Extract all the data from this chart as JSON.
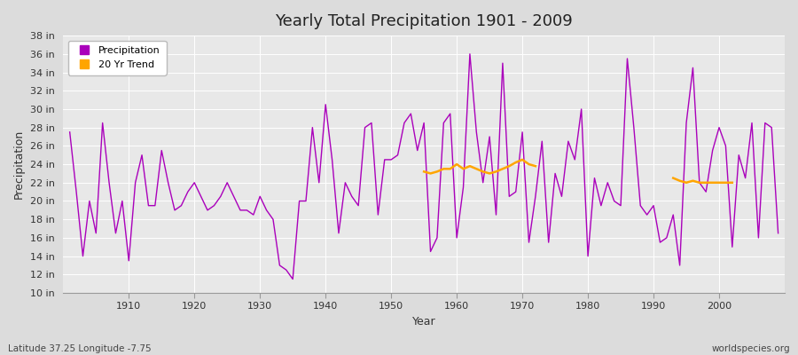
{
  "title": "Yearly Total Precipitation 1901 - 2009",
  "xlabel": "Year",
  "ylabel": "Precipitation",
  "subtitle_left": "Latitude 37.25 Longitude -7.75",
  "subtitle_right": "worldspecies.org",
  "precip_color": "#AA00BB",
  "trend_color": "#FFA500",
  "fig_bg_color": "#DCDCDC",
  "plot_bg_color": "#E8E8E8",
  "grid_color": "#FFFFFF",
  "ylim": [
    10,
    38
  ],
  "ytick_step": 2,
  "years": [
    1901,
    1902,
    1903,
    1904,
    1905,
    1906,
    1907,
    1908,
    1909,
    1910,
    1911,
    1912,
    1913,
    1914,
    1915,
    1916,
    1917,
    1918,
    1919,
    1920,
    1921,
    1922,
    1923,
    1924,
    1925,
    1926,
    1927,
    1928,
    1929,
    1930,
    1931,
    1932,
    1933,
    1934,
    1935,
    1936,
    1937,
    1938,
    1939,
    1940,
    1941,
    1942,
    1943,
    1944,
    1945,
    1946,
    1947,
    1948,
    1949,
    1950,
    1951,
    1952,
    1953,
    1954,
    1955,
    1956,
    1957,
    1958,
    1959,
    1960,
    1961,
    1962,
    1963,
    1964,
    1965,
    1966,
    1967,
    1968,
    1969,
    1970,
    1971,
    1972,
    1973,
    1974,
    1975,
    1976,
    1977,
    1978,
    1979,
    1980,
    1981,
    1982,
    1983,
    1984,
    1985,
    1986,
    1987,
    1988,
    1989,
    1990,
    1991,
    1992,
    1993,
    1994,
    1995,
    1996,
    1997,
    1998,
    1999,
    2000,
    2001,
    2002,
    2003,
    2004,
    2005,
    2006,
    2007,
    2008,
    2009
  ],
  "precip": [
    27.5,
    21.0,
    14.0,
    20.0,
    16.5,
    28.5,
    22.0,
    16.5,
    20.0,
    13.5,
    22.0,
    25.0,
    19.5,
    19.5,
    25.5,
    22.0,
    19.0,
    19.5,
    21.0,
    22.0,
    20.5,
    19.0,
    19.5,
    20.5,
    22.0,
    20.5,
    19.0,
    19.0,
    18.5,
    20.5,
    19.0,
    18.0,
    13.0,
    12.5,
    11.5,
    20.0,
    20.0,
    28.0,
    22.0,
    30.5,
    24.5,
    16.5,
    22.0,
    20.5,
    19.5,
    28.0,
    28.5,
    18.5,
    24.5,
    24.5,
    25.0,
    28.5,
    29.5,
    25.5,
    28.5,
    14.5,
    16.0,
    28.5,
    29.5,
    16.0,
    21.5,
    36.0,
    27.5,
    22.0,
    27.0,
    18.5,
    35.0,
    20.5,
    21.0,
    27.5,
    15.5,
    20.5,
    26.5,
    15.5,
    23.0,
    20.5,
    26.5,
    24.5,
    30.0,
    14.0,
    22.5,
    19.5,
    22.0,
    20.0,
    19.5,
    35.5,
    28.0,
    19.5,
    18.5,
    19.5,
    15.5,
    16.0,
    18.5,
    13.0,
    28.5,
    34.5,
    22.0,
    21.0,
    25.5,
    28.0,
    26.0,
    15.0,
    25.0,
    22.5,
    28.5,
    16.0,
    28.5,
    28.0,
    16.5
  ],
  "trend_segment1_years": [
    1955,
    1956,
    1957,
    1958,
    1959,
    1960,
    1961,
    1962,
    1963,
    1964,
    1965,
    1966,
    1967,
    1968,
    1969,
    1970,
    1971,
    1972
  ],
  "trend_segment1_vals": [
    23.2,
    23.0,
    23.2,
    23.5,
    23.5,
    24.0,
    23.5,
    23.8,
    23.5,
    23.2,
    23.0,
    23.2,
    23.5,
    23.8,
    24.2,
    24.5,
    24.0,
    23.8
  ],
  "trend_segment2_years": [
    1993,
    1994,
    1995,
    1996,
    1997,
    1998,
    1999,
    2000,
    2001,
    2002
  ],
  "trend_segment2_vals": [
    22.5,
    22.2,
    22.0,
    22.2,
    22.0,
    22.0,
    22.0,
    22.0,
    22.0,
    22.0
  ]
}
